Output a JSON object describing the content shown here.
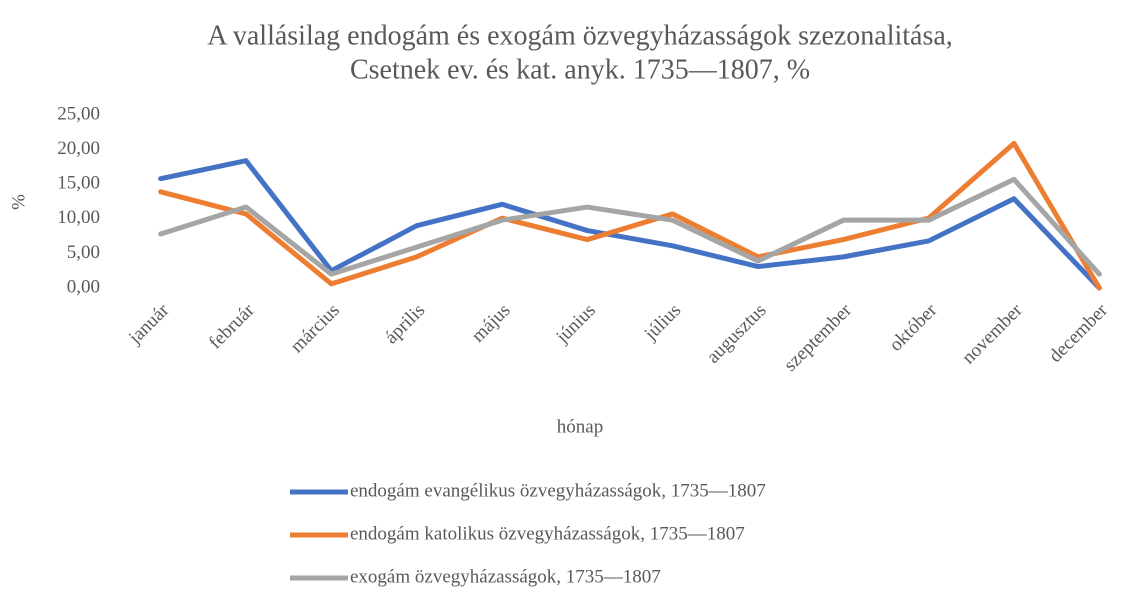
{
  "chart_data": {
    "type": "line",
    "title": [
      "A vallásilag endogám és exogám özvegyházasságok szezonalitása,",
      "Csetnek ev. és kat. anyk. 1735—1807, %"
    ],
    "x_label": "hónap",
    "y_label": "%",
    "categories": [
      "január",
      "február",
      "március",
      "április",
      "május",
      "június",
      "július",
      "augusztus",
      "szeptember",
      "október",
      "november",
      "december"
    ],
    "series": [
      {
        "name": "endogám evangélikus özvegyházasságok, 1735—1807",
        "color": "#4472c4",
        "values": [
          15.8,
          18.4,
          2.5,
          9.0,
          12.1,
          8.3,
          6.1,
          3.1,
          4.5,
          6.8,
          12.9,
          0.0
        ]
      },
      {
        "name": "endogám katolikus özvegyházasságok, 1735—1807",
        "color": "#ed7d31",
        "values": [
          13.9,
          10.7,
          0.6,
          4.5,
          10.1,
          7.0,
          10.7,
          4.5,
          7.0,
          10.1,
          20.9,
          0.0
        ]
      },
      {
        "name": "exogám özvegyházasságok, 1735—1807",
        "color": "#a5a5a5",
        "values": [
          7.8,
          11.7,
          2.0,
          5.9,
          9.8,
          11.7,
          9.8,
          3.9,
          9.8,
          9.8,
          15.7,
          2.0
        ]
      }
    ],
    "ylim": [
      0,
      25
    ],
    "yticks": [
      {
        "value": 0,
        "label": "0,00"
      },
      {
        "value": 5,
        "label": "5,00"
      },
      {
        "value": 10,
        "label": "10,00"
      },
      {
        "value": 15,
        "label": "15,00"
      },
      {
        "value": 20,
        "label": "20,00"
      },
      {
        "value": 25,
        "label": "25,00"
      }
    ],
    "grid": false,
    "legend": "bottom"
  }
}
